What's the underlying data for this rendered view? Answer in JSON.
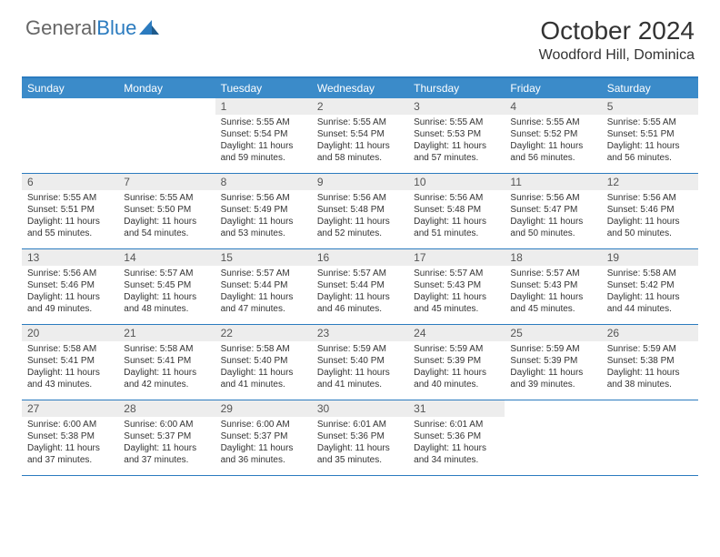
{
  "logo": {
    "text1": "General",
    "text2": "Blue"
  },
  "title": "October 2024",
  "location": "Woodford Hill, Dominica",
  "colors": {
    "header_bg": "#3b8bc9",
    "border": "#2b7bbf",
    "daynum_bg": "#ededed",
    "text": "#333333"
  },
  "day_names": [
    "Sunday",
    "Monday",
    "Tuesday",
    "Wednesday",
    "Thursday",
    "Friday",
    "Saturday"
  ],
  "weeks": [
    [
      {
        "n": "",
        "sr": "",
        "ss": "",
        "dl": ""
      },
      {
        "n": "",
        "sr": "",
        "ss": "",
        "dl": ""
      },
      {
        "n": "1",
        "sr": "5:55 AM",
        "ss": "5:54 PM",
        "dl": "11 hours and 59 minutes."
      },
      {
        "n": "2",
        "sr": "5:55 AM",
        "ss": "5:54 PM",
        "dl": "11 hours and 58 minutes."
      },
      {
        "n": "3",
        "sr": "5:55 AM",
        "ss": "5:53 PM",
        "dl": "11 hours and 57 minutes."
      },
      {
        "n": "4",
        "sr": "5:55 AM",
        "ss": "5:52 PM",
        "dl": "11 hours and 56 minutes."
      },
      {
        "n": "5",
        "sr": "5:55 AM",
        "ss": "5:51 PM",
        "dl": "11 hours and 56 minutes."
      }
    ],
    [
      {
        "n": "6",
        "sr": "5:55 AM",
        "ss": "5:51 PM",
        "dl": "11 hours and 55 minutes."
      },
      {
        "n": "7",
        "sr": "5:55 AM",
        "ss": "5:50 PM",
        "dl": "11 hours and 54 minutes."
      },
      {
        "n": "8",
        "sr": "5:56 AM",
        "ss": "5:49 PM",
        "dl": "11 hours and 53 minutes."
      },
      {
        "n": "9",
        "sr": "5:56 AM",
        "ss": "5:48 PM",
        "dl": "11 hours and 52 minutes."
      },
      {
        "n": "10",
        "sr": "5:56 AM",
        "ss": "5:48 PM",
        "dl": "11 hours and 51 minutes."
      },
      {
        "n": "11",
        "sr": "5:56 AM",
        "ss": "5:47 PM",
        "dl": "11 hours and 50 minutes."
      },
      {
        "n": "12",
        "sr": "5:56 AM",
        "ss": "5:46 PM",
        "dl": "11 hours and 50 minutes."
      }
    ],
    [
      {
        "n": "13",
        "sr": "5:56 AM",
        "ss": "5:46 PM",
        "dl": "11 hours and 49 minutes."
      },
      {
        "n": "14",
        "sr": "5:57 AM",
        "ss": "5:45 PM",
        "dl": "11 hours and 48 minutes."
      },
      {
        "n": "15",
        "sr": "5:57 AM",
        "ss": "5:44 PM",
        "dl": "11 hours and 47 minutes."
      },
      {
        "n": "16",
        "sr": "5:57 AM",
        "ss": "5:44 PM",
        "dl": "11 hours and 46 minutes."
      },
      {
        "n": "17",
        "sr": "5:57 AM",
        "ss": "5:43 PM",
        "dl": "11 hours and 45 minutes."
      },
      {
        "n": "18",
        "sr": "5:57 AM",
        "ss": "5:43 PM",
        "dl": "11 hours and 45 minutes."
      },
      {
        "n": "19",
        "sr": "5:58 AM",
        "ss": "5:42 PM",
        "dl": "11 hours and 44 minutes."
      }
    ],
    [
      {
        "n": "20",
        "sr": "5:58 AM",
        "ss": "5:41 PM",
        "dl": "11 hours and 43 minutes."
      },
      {
        "n": "21",
        "sr": "5:58 AM",
        "ss": "5:41 PM",
        "dl": "11 hours and 42 minutes."
      },
      {
        "n": "22",
        "sr": "5:58 AM",
        "ss": "5:40 PM",
        "dl": "11 hours and 41 minutes."
      },
      {
        "n": "23",
        "sr": "5:59 AM",
        "ss": "5:40 PM",
        "dl": "11 hours and 41 minutes."
      },
      {
        "n": "24",
        "sr": "5:59 AM",
        "ss": "5:39 PM",
        "dl": "11 hours and 40 minutes."
      },
      {
        "n": "25",
        "sr": "5:59 AM",
        "ss": "5:39 PM",
        "dl": "11 hours and 39 minutes."
      },
      {
        "n": "26",
        "sr": "5:59 AM",
        "ss": "5:38 PM",
        "dl": "11 hours and 38 minutes."
      }
    ],
    [
      {
        "n": "27",
        "sr": "6:00 AM",
        "ss": "5:38 PM",
        "dl": "11 hours and 37 minutes."
      },
      {
        "n": "28",
        "sr": "6:00 AM",
        "ss": "5:37 PM",
        "dl": "11 hours and 37 minutes."
      },
      {
        "n": "29",
        "sr": "6:00 AM",
        "ss": "5:37 PM",
        "dl": "11 hours and 36 minutes."
      },
      {
        "n": "30",
        "sr": "6:01 AM",
        "ss": "5:36 PM",
        "dl": "11 hours and 35 minutes."
      },
      {
        "n": "31",
        "sr": "6:01 AM",
        "ss": "5:36 PM",
        "dl": "11 hours and 34 minutes."
      },
      {
        "n": "",
        "sr": "",
        "ss": "",
        "dl": ""
      },
      {
        "n": "",
        "sr": "",
        "ss": "",
        "dl": ""
      }
    ]
  ],
  "labels": {
    "sunrise": "Sunrise:",
    "sunset": "Sunset:",
    "daylight": "Daylight:"
  }
}
